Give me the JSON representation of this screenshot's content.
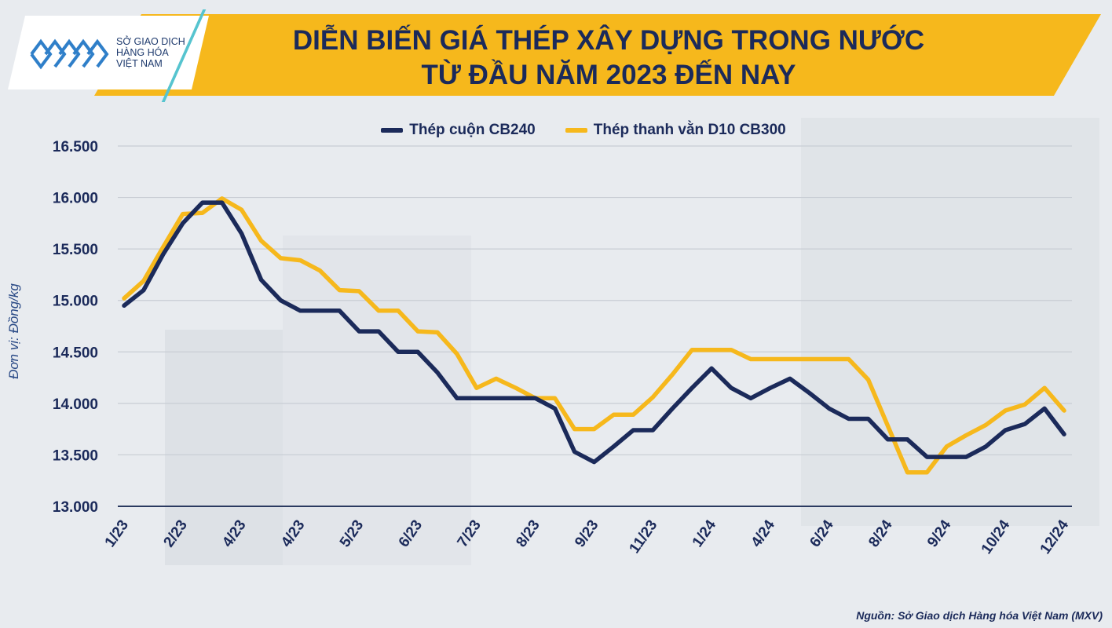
{
  "header": {
    "logo_lines": [
      "SỞ GIAO DỊCH",
      "HÀNG HÓA",
      "VIỆT NAM"
    ],
    "title_line1": "DIỄN BIẾN GIÁ THÉP XÂY DỰNG TRONG NƯỚC",
    "title_line2": "TỪ ĐẦU NĂM 2023 ĐẾN NAY"
  },
  "footer": {
    "source": "Nguồn: Sở Giao dịch Hàng hóa Việt Nam (MXV)"
  },
  "colors": {
    "accent": "#f6b81c",
    "navy": "#1b2a5a",
    "logo_blue": "#2f7fc9"
  },
  "chart_data": {
    "type": "line",
    "title": "DIỄN BIẾN GIÁ THÉP XÂY DỰNG TRONG NƯỚC TỪ ĐẦU NĂM 2023 ĐẾN NAY",
    "ylabel": "Đơn vị: Đồng/kg",
    "xlabel": "",
    "ylim": [
      13000,
      16500
    ],
    "yticks": [
      13000,
      13500,
      14000,
      14500,
      15000,
      15500,
      16000,
      16500
    ],
    "ytick_labels": [
      "13.000",
      "13.500",
      "14.000",
      "14.500",
      "15.000",
      "15.500",
      "16.000",
      "16.500"
    ],
    "grid": true,
    "legend_position": "top-center",
    "xtick_labels": [
      {
        "label": "1/23",
        "index": 0
      },
      {
        "label": "2/23",
        "index": 4
      },
      {
        "label": "4/23",
        "index": 8
      },
      {
        "label": "4/23",
        "index": 12
      },
      {
        "label": "5/23",
        "index": 16
      },
      {
        "label": "6/23",
        "index": 20
      },
      {
        "label": "7/23",
        "index": 24
      },
      {
        "label": "8/23",
        "index": 28
      },
      {
        "label": "9/23",
        "index": 32
      },
      {
        "label": "11/23",
        "index": 36
      },
      {
        "label": "1/24",
        "index": 40
      },
      {
        "label": "4/24",
        "index": 44
      },
      {
        "label": "6/24",
        "index": 48
      },
      {
        "label": "8/24",
        "index": 52
      },
      {
        "label": "9/24",
        "index": 56
      },
      {
        "label": "10/24",
        "index": 60
      },
      {
        "label": "12/24",
        "index": 64
      }
    ],
    "series": [
      {
        "name": "Thép cuộn CB240",
        "color": "#1b2a5a",
        "values": [
          14950,
          15100,
          15450,
          15750,
          15950,
          15950,
          15650,
          15200,
          15000,
          14900,
          14900,
          14900,
          14700,
          14700,
          14500,
          14500,
          14300,
          14050,
          14050,
          14050,
          14050,
          14050,
          13950,
          13530,
          13430,
          13580,
          13740,
          13740,
          13950,
          14150,
          14340,
          14150,
          14050,
          14150,
          14240,
          14100,
          13950,
          13850,
          13850,
          13650,
          13650,
          13480,
          13480,
          13480,
          13580,
          13740,
          13800,
          13950,
          13700
        ]
      },
      {
        "name": "Thép thanh vằn D10 CB300",
        "color": "#f6b81c",
        "values": [
          15020,
          15190,
          15520,
          15840,
          15850,
          15990,
          15880,
          15580,
          15410,
          15390,
          15290,
          15100,
          15090,
          14900,
          14900,
          14700,
          14690,
          14480,
          14150,
          14240,
          14150,
          14050,
          14050,
          13750,
          13750,
          13890,
          13890,
          14060,
          14280,
          14520,
          14520,
          14520,
          14430,
          14430,
          14430,
          14430,
          14430,
          14430,
          14230,
          13780,
          13330,
          13330,
          13580,
          13690,
          13790,
          13930,
          13990,
          14150,
          13930
        ]
      }
    ]
  }
}
